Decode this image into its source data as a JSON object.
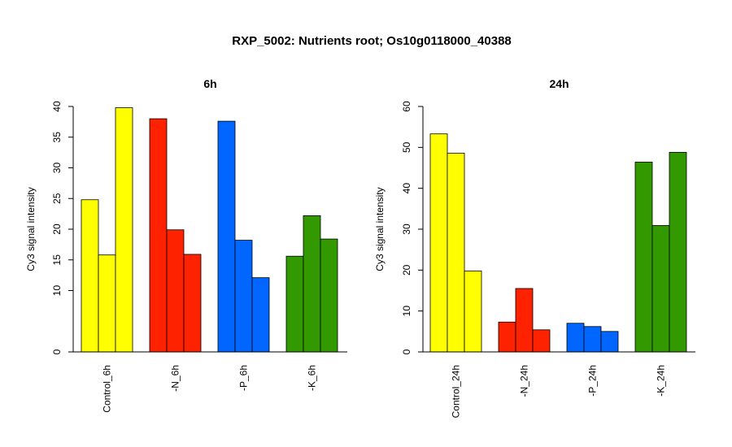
{
  "figure": {
    "title": "RXP_5002: Nutrients root; Os10g0118000_40388"
  },
  "chart_data": [
    {
      "type": "bar",
      "title": "6h",
      "ylabel": "Cy3 signal intensity",
      "xlabel": "",
      "ylim": [
        0,
        40
      ],
      "yticks": [
        0,
        10,
        15,
        20,
        25,
        30,
        35,
        40
      ],
      "categories": [
        "Control_6h",
        "-N_6h",
        "-P_6h",
        "-K_6h"
      ],
      "colors": [
        "#ffff00",
        "#ff2200",
        "#0066ff",
        "#339900"
      ],
      "values": [
        [
          24.8,
          15.8,
          39.8
        ],
        [
          38.0,
          19.9,
          15.9
        ],
        [
          37.6,
          18.2,
          12.1
        ],
        [
          15.6,
          22.2,
          18.4
        ]
      ]
    },
    {
      "type": "bar",
      "title": "24h",
      "ylabel": "Cy3 signal intensity",
      "xlabel": "",
      "ylim": [
        0,
        60
      ],
      "yticks": [
        0,
        10,
        20,
        30,
        40,
        50,
        60
      ],
      "categories": [
        "Control_24h",
        "-N_24h",
        "-P_24h",
        "-K_24h"
      ],
      "colors": [
        "#ffff00",
        "#ff2200",
        "#0066ff",
        "#339900"
      ],
      "values": [
        [
          53.3,
          48.6,
          19.8
        ],
        [
          7.3,
          15.5,
          5.4
        ],
        [
          7.0,
          6.2,
          5.0
        ],
        [
          46.4,
          30.9,
          48.8
        ]
      ]
    }
  ]
}
